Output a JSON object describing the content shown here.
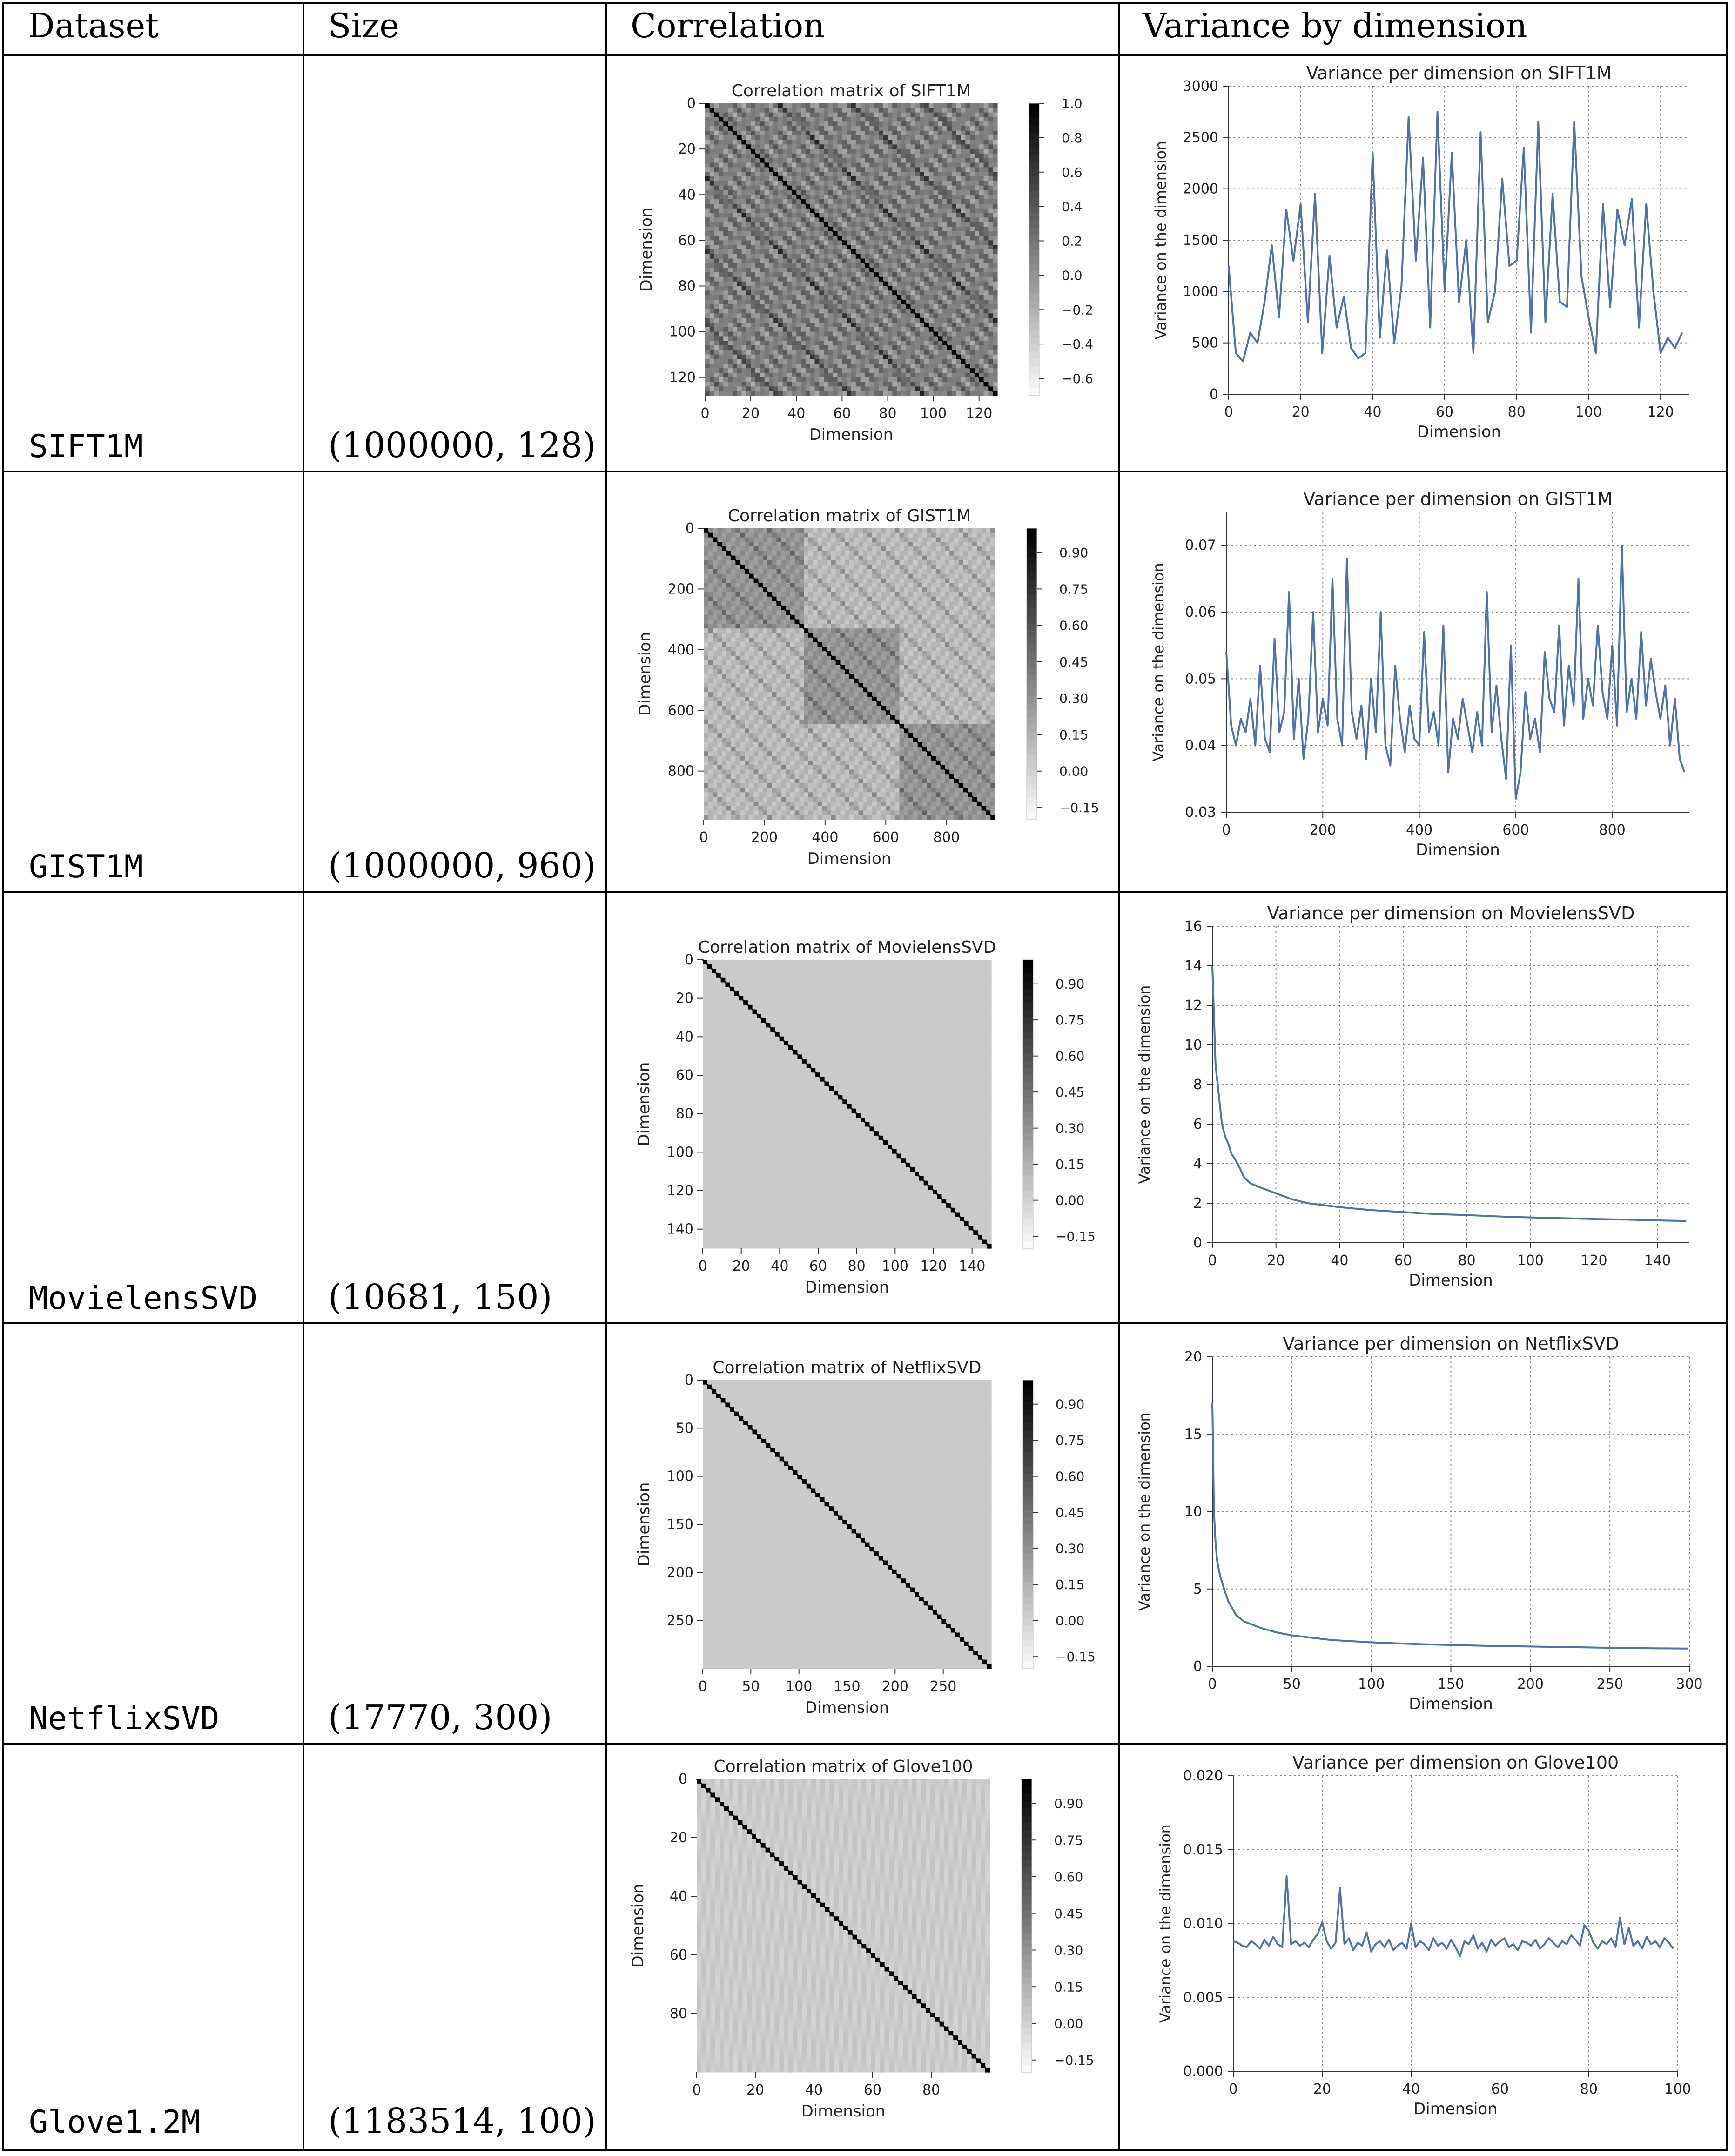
{
  "table": {
    "headers": [
      "Dataset",
      "Size",
      "Correlation",
      "Variance by dimension"
    ],
    "rows": [
      {
        "dataset": "SIFT1M",
        "size": "(1000000, 128)"
      },
      {
        "dataset": "GIST1M",
        "size": "(1000000, 960)"
      },
      {
        "dataset": "MovielensSVD",
        "size": "(10681, 150)"
      },
      {
        "dataset": "NetflixSVD",
        "size": "(17770, 300)"
      },
      {
        "dataset": "Glove1.2M",
        "size": "(1183514, 100)"
      }
    ]
  },
  "colors": {
    "line": "#4c72b0",
    "grid": "#888888",
    "axis": "#333333",
    "heat_min": "#ffffff",
    "heat_max": "#000000"
  },
  "chart_data": [
    {
      "type": "heatmap",
      "title": "Correlation matrix of SIFT1M",
      "xlabel": "Dimension",
      "ylabel": "Dimension",
      "n": 128,
      "xticks": [
        0,
        20,
        40,
        60,
        80,
        100,
        120
      ],
      "yticks": [
        0,
        20,
        40,
        60,
        80,
        100,
        120
      ],
      "colorbar": {
        "min": -0.7,
        "max": 1.0,
        "ticks": [
          1.0,
          0.8,
          0.6,
          0.4,
          0.2,
          0.0,
          -0.2,
          -0.4,
          -0.6
        ],
        "tick_labels": [
          "1.0",
          "0.8",
          "0.6",
          "0.4",
          "0.2",
          "0.0",
          "−0.2",
          "−0.4",
          "−0.6"
        ]
      },
      "pattern": "checker",
      "off_diagonal_value": 0.12,
      "diagonal_value": 1.0
    },
    {
      "type": "line",
      "title": "Variance per dimension on SIFT1M",
      "xlabel": "Dimension",
      "ylabel": "Variance on the dimension",
      "xlim": [
        0,
        128
      ],
      "ylim": [
        0,
        3000
      ],
      "xticks": [
        0,
        20,
        40,
        60,
        80,
        100,
        120
      ],
      "yticks": [
        0,
        500,
        1000,
        1500,
        2000,
        2500,
        3000
      ],
      "grid": true,
      "series": [
        {
          "x_start": 0,
          "x_step": 2,
          "values": [
            1250,
            400,
            320,
            600,
            500,
            900,
            1450,
            750,
            1800,
            1300,
            1850,
            700,
            1950,
            400,
            1350,
            650,
            950,
            450,
            350,
            400,
            2350,
            550,
            1400,
            500,
            1050,
            2700,
            1300,
            2300,
            650,
            2750,
            1000,
            2350,
            900,
            1500,
            400,
            2550,
            700,
            1000,
            2100,
            1250,
            1300,
            2400,
            600,
            2650,
            700,
            1950,
            900,
            850,
            2650,
            1150,
            750,
            400,
            1850,
            850,
            1800,
            1450,
            1900,
            650,
            1850,
            1000,
            400,
            550,
            450,
            600
          ]
        }
      ]
    },
    {
      "type": "heatmap",
      "title": "Correlation matrix of GIST1M",
      "xlabel": "Dimension",
      "ylabel": "Dimension",
      "n": 960,
      "xticks": [
        0,
        200,
        400,
        600,
        800
      ],
      "yticks": [
        0,
        200,
        400,
        600,
        800
      ],
      "colorbar": {
        "min": -0.2,
        "max": 1.0,
        "ticks": [
          0.9,
          0.75,
          0.6,
          0.45,
          0.3,
          0.15,
          0.0,
          -0.15
        ],
        "tick_labels": [
          "0.90",
          "0.75",
          "0.60",
          "0.45",
          "0.30",
          "0.15",
          "0.00",
          "−0.15"
        ]
      },
      "pattern": "blocks",
      "off_diagonal_value": 0.05,
      "diagonal_value": 1.0
    },
    {
      "type": "line",
      "title": "Variance per dimension on GIST1M",
      "xlabel": "Dimension",
      "ylabel": "Variance on the dimension",
      "xlim": [
        0,
        960
      ],
      "ylim": [
        0.03,
        0.075
      ],
      "xticks": [
        0,
        200,
        400,
        600,
        800
      ],
      "yticks": [
        0.03,
        0.04,
        0.05,
        0.06,
        0.07
      ],
      "grid": true,
      "series": [
        {
          "x_start": 0,
          "x_step": 10,
          "values": [
            0.054,
            0.043,
            0.04,
            0.044,
            0.042,
            0.047,
            0.04,
            0.052,
            0.041,
            0.039,
            0.056,
            0.042,
            0.045,
            0.063,
            0.041,
            0.05,
            0.038,
            0.044,
            0.06,
            0.042,
            0.047,
            0.043,
            0.065,
            0.044,
            0.04,
            0.068,
            0.045,
            0.041,
            0.046,
            0.038,
            0.05,
            0.042,
            0.06,
            0.04,
            0.037,
            0.052,
            0.044,
            0.039,
            0.046,
            0.041,
            0.04,
            0.057,
            0.042,
            0.045,
            0.04,
            0.058,
            0.036,
            0.044,
            0.041,
            0.047,
            0.043,
            0.039,
            0.045,
            0.04,
            0.063,
            0.042,
            0.049,
            0.041,
            0.035,
            0.055,
            0.032,
            0.036,
            0.048,
            0.041,
            0.044,
            0.039,
            0.054,
            0.047,
            0.045,
            0.058,
            0.043,
            0.052,
            0.046,
            0.065,
            0.044,
            0.05,
            0.046,
            0.058,
            0.048,
            0.044,
            0.055,
            0.043,
            0.07,
            0.045,
            0.05,
            0.044,
            0.057,
            0.046,
            0.053,
            0.048,
            0.044,
            0.049,
            0.04,
            0.047,
            0.038,
            0.036
          ]
        }
      ]
    },
    {
      "type": "heatmap",
      "title": "Correlation matrix of MovielensSVD",
      "xlabel": "Dimension",
      "ylabel": "Dimension",
      "n": 150,
      "xticks": [
        0,
        20,
        40,
        60,
        80,
        100,
        120,
        140
      ],
      "yticks": [
        0,
        20,
        40,
        60,
        80,
        100,
        120,
        140
      ],
      "colorbar": {
        "min": -0.2,
        "max": 1.0,
        "ticks": [
          0.9,
          0.75,
          0.6,
          0.45,
          0.3,
          0.15,
          0.0,
          -0.15
        ],
        "tick_labels": [
          "0.90",
          "0.75",
          "0.60",
          "0.45",
          "0.30",
          "0.15",
          "0.00",
          "−0.15"
        ]
      },
      "pattern": "diagonal",
      "off_diagonal_value": 0.0,
      "diagonal_value": 1.0
    },
    {
      "type": "line",
      "title": "Variance per dimension on MovielensSVD",
      "xlabel": "Dimension",
      "ylabel": "Variance on the dimension",
      "xlim": [
        0,
        150
      ],
      "ylim": [
        0,
        16
      ],
      "xticks": [
        0,
        20,
        40,
        60,
        80,
        100,
        120,
        140
      ],
      "yticks": [
        0,
        2,
        4,
        6,
        8,
        10,
        12,
        14,
        16
      ],
      "grid": true,
      "series": [
        {
          "x": [
            0,
            1,
            2,
            3,
            4,
            5,
            6,
            8,
            10,
            12,
            15,
            20,
            25,
            30,
            40,
            50,
            60,
            70,
            80,
            90,
            100,
            110,
            120,
            130,
            140,
            149
          ],
          "values": [
            14.0,
            9.0,
            7.5,
            6.0,
            5.4,
            5.0,
            4.5,
            4.0,
            3.3,
            3.0,
            2.8,
            2.5,
            2.2,
            2.0,
            1.8,
            1.65,
            1.55,
            1.45,
            1.4,
            1.33,
            1.28,
            1.24,
            1.2,
            1.17,
            1.13,
            1.1
          ]
        }
      ]
    },
    {
      "type": "heatmap",
      "title": "Correlation matrix of NetflixSVD",
      "xlabel": "Dimension",
      "ylabel": "Dimension",
      "n": 300,
      "xticks": [
        0,
        50,
        100,
        150,
        200,
        250
      ],
      "yticks": [
        0,
        50,
        100,
        150,
        200,
        250
      ],
      "colorbar": {
        "min": -0.2,
        "max": 1.0,
        "ticks": [
          0.9,
          0.75,
          0.6,
          0.45,
          0.3,
          0.15,
          0.0,
          -0.15
        ],
        "tick_labels": [
          "0.90",
          "0.75",
          "0.60",
          "0.45",
          "0.30",
          "0.15",
          "0.00",
          "−0.15"
        ]
      },
      "pattern": "diagonal",
      "off_diagonal_value": 0.0,
      "diagonal_value": 1.0
    },
    {
      "type": "line",
      "title": "Variance per dimension on NetflixSVD",
      "xlabel": "Dimension",
      "ylabel": "Variance on the dimension",
      "xlim": [
        0,
        300
      ],
      "ylim": [
        0,
        20
      ],
      "xticks": [
        0,
        50,
        100,
        150,
        200,
        250,
        300
      ],
      "yticks": [
        0,
        5,
        10,
        15,
        20
      ],
      "grid": true,
      "series": [
        {
          "x": [
            0,
            1,
            2,
            3,
            5,
            8,
            10,
            15,
            20,
            30,
            40,
            50,
            75,
            100,
            125,
            150,
            175,
            200,
            225,
            250,
            275,
            299
          ],
          "values": [
            17.0,
            10.0,
            8.0,
            6.8,
            5.8,
            4.8,
            4.2,
            3.3,
            2.9,
            2.5,
            2.2,
            2.0,
            1.7,
            1.55,
            1.45,
            1.38,
            1.32,
            1.28,
            1.24,
            1.2,
            1.17,
            1.15
          ]
        }
      ]
    },
    {
      "type": "heatmap",
      "title": "Correlation matrix of Glove100",
      "xlabel": "Dimension",
      "ylabel": "Dimension",
      "n": 100,
      "xticks": [
        0,
        20,
        40,
        60,
        80
      ],
      "yticks": [
        0,
        20,
        40,
        60,
        80
      ],
      "colorbar": {
        "min": -0.2,
        "max": 1.0,
        "ticks": [
          0.9,
          0.75,
          0.6,
          0.45,
          0.3,
          0.15,
          0.0,
          -0.15
        ],
        "tick_labels": [
          "0.90",
          "0.75",
          "0.60",
          "0.45",
          "0.30",
          "0.15",
          "0.00",
          "−0.15"
        ]
      },
      "pattern": "noise",
      "off_diagonal_value": 0.02,
      "diagonal_value": 1.0
    },
    {
      "type": "line",
      "title": "Variance per dimension on Glove100",
      "xlabel": "Dimension",
      "ylabel": "Variance on the dimension",
      "xlim": [
        0,
        100
      ],
      "ylim": [
        0,
        0.02
      ],
      "xticks": [
        0,
        20,
        40,
        60,
        80,
        100
      ],
      "yticks": [
        0.0,
        0.005,
        0.01,
        0.015,
        0.02
      ],
      "ytick_labels": [
        "0.000",
        "0.005",
        "0.010",
        "0.015",
        "0.020"
      ],
      "grid": true,
      "series": [
        {
          "x_start": 0,
          "x_step": 1,
          "values": [
            0.0088,
            0.0087,
            0.0085,
            0.0084,
            0.0088,
            0.0086,
            0.0083,
            0.0089,
            0.0085,
            0.0091,
            0.0086,
            0.0084,
            0.0132,
            0.0086,
            0.0088,
            0.0085,
            0.0087,
            0.0084,
            0.0089,
            0.0093,
            0.0101,
            0.0088,
            0.0083,
            0.0087,
            0.0124,
            0.0086,
            0.009,
            0.0082,
            0.0087,
            0.0085,
            0.0094,
            0.0081,
            0.0086,
            0.0088,
            0.0084,
            0.0089,
            0.0082,
            0.0085,
            0.0087,
            0.0083,
            0.01,
            0.0084,
            0.0088,
            0.0086,
            0.0082,
            0.009,
            0.0085,
            0.0087,
            0.0083,
            0.0089,
            0.0084,
            0.0078,
            0.0088,
            0.0086,
            0.0092,
            0.0083,
            0.0087,
            0.0081,
            0.0089,
            0.0085,
            0.0088,
            0.009,
            0.0084,
            0.0086,
            0.0082,
            0.0088,
            0.0087,
            0.0085,
            0.0089,
            0.0083,
            0.0086,
            0.009,
            0.0087,
            0.0084,
            0.0088,
            0.0086,
            0.0092,
            0.0089,
            0.0085,
            0.0099,
            0.0095,
            0.0087,
            0.0083,
            0.0088,
            0.0086,
            0.009,
            0.0084,
            0.0104,
            0.0086,
            0.0097,
            0.0085,
            0.0088,
            0.0083,
            0.0091,
            0.0086,
            0.0088,
            0.0084,
            0.009,
            0.0087,
            0.0083
          ]
        }
      ]
    }
  ]
}
